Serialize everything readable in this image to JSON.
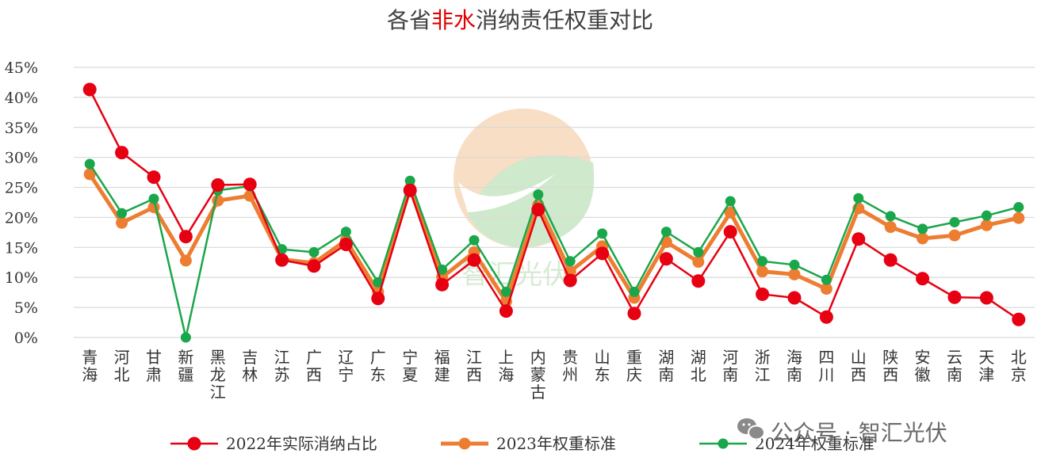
{
  "title": {
    "prefix": "各省",
    "accent": "非水",
    "suffix": "消纳责任权重对比"
  },
  "watermark": {
    "text": "公众号 · 智汇光伏",
    "icon": "wechat-icon"
  },
  "colors": {
    "series_2022": "#e60012",
    "series_2023": "#ed7d31",
    "series_2024": "#1aa64a",
    "grid": "#d9d9d9",
    "logo_orange": "#f2c9a0",
    "logo_green": "#a8d8a8"
  },
  "chart_data": {
    "type": "line",
    "title": "各省非水消纳责任权重对比",
    "xlabel": "",
    "ylabel": "",
    "ylim": [
      0,
      45
    ],
    "yticks": [
      "0%",
      "5%",
      "10%",
      "15%",
      "20%",
      "25%",
      "30%",
      "35%",
      "40%",
      "45%"
    ],
    "grid": true,
    "legend_position": "bottom",
    "categories": [
      "青海",
      "河北",
      "甘肃",
      "新疆",
      "黑龙江",
      "吉林",
      "江苏",
      "广西",
      "辽宁",
      "广东",
      "宁夏",
      "福建",
      "江西",
      "上海",
      "内蒙古",
      "贵州",
      "山东",
      "重庆",
      "湖南",
      "湖北",
      "河南",
      "浙江",
      "海南",
      "四川",
      "山西",
      "陕西",
      "安徽",
      "云南",
      "天津",
      "北京"
    ],
    "series": [
      {
        "name": "2022年实际消纳占比",
        "color": "#e60012",
        "values": [
          41.3,
          30.8,
          26.7,
          16.8,
          25.4,
          25.5,
          12.9,
          11.9,
          15.5,
          6.5,
          24.5,
          8.8,
          12.9,
          4.4,
          21.3,
          9.5,
          14.0,
          4.0,
          13.1,
          9.4,
          17.6,
          7.2,
          6.6,
          3.4,
          16.4,
          12.9,
          9.8,
          6.7,
          6.6,
          3.0
        ]
      },
      {
        "name": "2023年权重标准",
        "color": "#ed7d31",
        "values": [
          27.2,
          19.1,
          21.7,
          12.8,
          22.8,
          23.6,
          13.0,
          12.4,
          16.2,
          7.6,
          24.8,
          10.0,
          14.2,
          6.0,
          22.1,
          11.0,
          15.2,
          6.6,
          15.9,
          12.6,
          20.8,
          11.0,
          10.5,
          8.1,
          21.5,
          18.4,
          16.5,
          17.0,
          18.7,
          19.9
        ]
      },
      {
        "name": "2024年权重标准",
        "color": "#1aa64a",
        "values": [
          28.9,
          20.7,
          23.1,
          0,
          24.5,
          25.2,
          14.7,
          14.2,
          17.6,
          9.2,
          26.1,
          11.3,
          16.2,
          7.6,
          23.8,
          12.7,
          17.3,
          7.6,
          17.6,
          14.2,
          22.7,
          12.7,
          12.1,
          9.6,
          23.2,
          20.2,
          18.1,
          19.2,
          20.3,
          21.7
        ]
      }
    ]
  }
}
